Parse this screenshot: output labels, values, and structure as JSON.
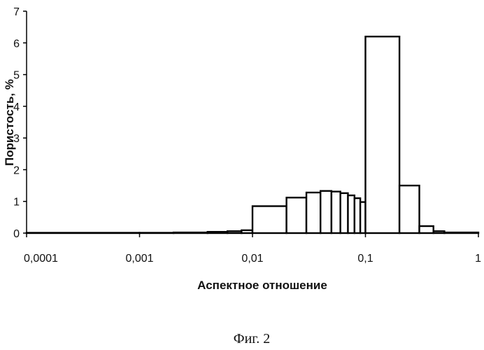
{
  "chart_data": {
    "type": "bar",
    "xscale": "log",
    "xlim": [
      0.0001,
      1
    ],
    "ylim": [
      0,
      7
    ],
    "xlabel": "Аспектное отношение",
    "ylabel": "Пористость, %",
    "grid": false,
    "legend": "none",
    "xticks": [
      "0,0001",
      "0,001",
      "0,01",
      "0,1",
      "1"
    ],
    "yticks": [
      "0",
      "1",
      "2",
      "3",
      "4",
      "5",
      "6",
      "7"
    ],
    "bars": [
      {
        "x0": 0.0001,
        "x1": 0.001,
        "value": 0.01
      },
      {
        "x0": 0.001,
        "x1": 0.002,
        "value": 0.01
      },
      {
        "x0": 0.002,
        "x1": 0.004,
        "value": 0.02
      },
      {
        "x0": 0.004,
        "x1": 0.006,
        "value": 0.04
      },
      {
        "x0": 0.006,
        "x1": 0.008,
        "value": 0.06
      },
      {
        "x0": 0.008,
        "x1": 0.01,
        "value": 0.09
      },
      {
        "x0": 0.01,
        "x1": 0.02,
        "value": 0.85
      },
      {
        "x0": 0.02,
        "x1": 0.03,
        "value": 1.12
      },
      {
        "x0": 0.03,
        "x1": 0.04,
        "value": 1.28
      },
      {
        "x0": 0.04,
        "x1": 0.05,
        "value": 1.33
      },
      {
        "x0": 0.05,
        "x1": 0.06,
        "value": 1.31
      },
      {
        "x0": 0.06,
        "x1": 0.07,
        "value": 1.26
      },
      {
        "x0": 0.07,
        "x1": 0.08,
        "value": 1.19
      },
      {
        "x0": 0.08,
        "x1": 0.09,
        "value": 1.1
      },
      {
        "x0": 0.09,
        "x1": 0.1,
        "value": 0.98
      },
      {
        "x0": 0.1,
        "x1": 0.2,
        "value": 6.2
      },
      {
        "x0": 0.2,
        "x1": 0.3,
        "value": 1.5
      },
      {
        "x0": 0.3,
        "x1": 0.4,
        "value": 0.22
      },
      {
        "x0": 0.4,
        "x1": 0.5,
        "value": 0.06
      },
      {
        "x0": 0.5,
        "x1": 1,
        "value": 0.02
      }
    ],
    "bar_fill": "#ffffff",
    "bar_stroke": "#000000"
  },
  "caption": "Фиг. 2"
}
